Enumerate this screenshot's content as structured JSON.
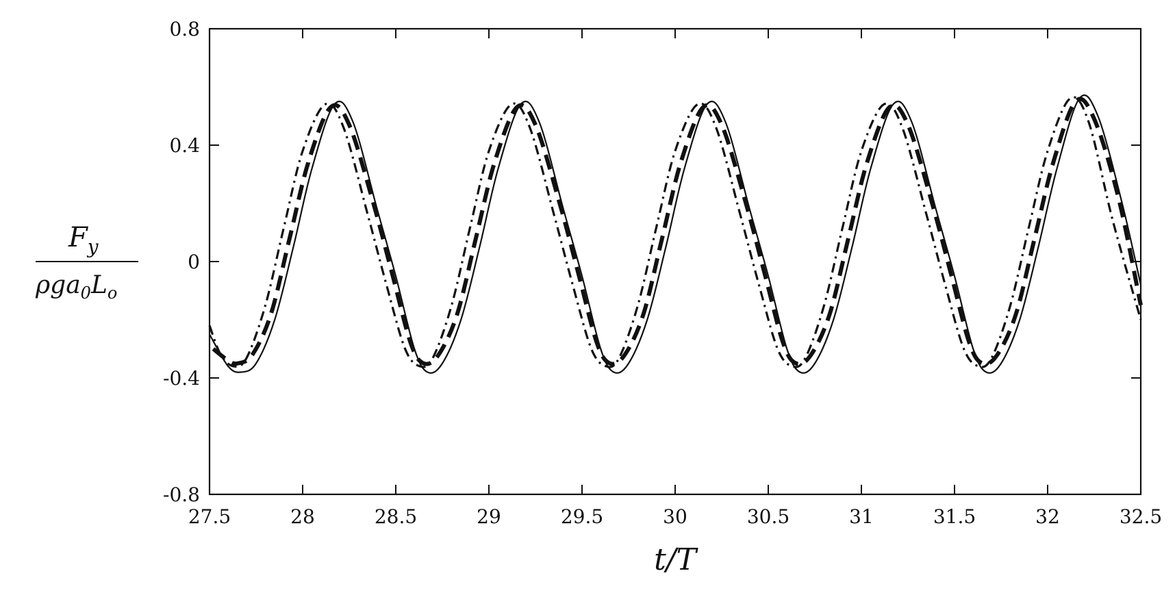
{
  "chart_data": {
    "type": "line",
    "title": "",
    "xlabel": "t/T",
    "ylabel": {
      "numerator": "F_y",
      "denominator": "ρ g a_0 L_o",
      "num_main": "F",
      "num_sub": "y",
      "den_part1": "ρga",
      "den_sub1": "0",
      "den_part2": "L",
      "den_sub2": "o"
    },
    "xlim": [
      27.5,
      32.5
    ],
    "ylim": [
      -0.8,
      0.8
    ],
    "grid": false,
    "legend": "none",
    "x_ticks": [
      27.5,
      28,
      28.5,
      29,
      29.5,
      30,
      30.5,
      31,
      31.5,
      32,
      32.5
    ],
    "x_tick_labels": [
      "27.5",
      "28",
      "28.5",
      "29",
      "29.5",
      "30",
      "30.5",
      "31",
      "31.5",
      "32",
      "32.5"
    ],
    "y_ticks": [
      -0.8,
      -0.4,
      0,
      0.4,
      0.8
    ],
    "y_tick_labels": [
      "-0.8",
      "-0.4",
      "0",
      "0.4",
      "0.8"
    ],
    "series": [
      {
        "style": "solid",
        "color": "#111111",
        "x": [
          27.5,
          27.6,
          27.67,
          27.75,
          27.85,
          27.95,
          28.05,
          28.17,
          28.27,
          28.4,
          28.5,
          28.6,
          28.67,
          28.75,
          28.85,
          28.95,
          29.05,
          29.17,
          29.27,
          29.4,
          29.5,
          29.6,
          29.67,
          29.75,
          29.85,
          29.95,
          30.05,
          30.17,
          30.27,
          30.4,
          30.5,
          30.6,
          30.67,
          30.75,
          30.85,
          30.95,
          31.05,
          31.17,
          31.27,
          31.4,
          31.5,
          31.6,
          31.67,
          31.75,
          31.85,
          31.95,
          32.05,
          32.17,
          32.27,
          32.4,
          32.5
        ],
        "y": [
          -0.25,
          -0.36,
          -0.38,
          -0.35,
          -0.2,
          0.05,
          0.32,
          0.54,
          0.48,
          0.18,
          -0.05,
          -0.3,
          -0.38,
          -0.35,
          -0.2,
          0.05,
          0.32,
          0.54,
          0.48,
          0.18,
          -0.05,
          -0.3,
          -0.38,
          -0.35,
          -0.2,
          0.05,
          0.32,
          0.54,
          0.48,
          0.18,
          -0.05,
          -0.3,
          -0.38,
          -0.35,
          -0.2,
          0.05,
          0.32,
          0.54,
          0.48,
          0.18,
          -0.05,
          -0.3,
          -0.38,
          -0.35,
          -0.2,
          0.05,
          0.32,
          0.56,
          0.5,
          0.2,
          -0.08
        ]
      },
      {
        "style": "dashed-thick",
        "color": "#111111",
        "x": [
          27.52,
          27.6,
          27.65,
          27.73,
          27.83,
          27.93,
          28.03,
          28.15,
          28.25,
          28.38,
          28.48,
          28.58,
          28.65,
          28.73,
          28.83,
          28.93,
          29.03,
          29.15,
          29.25,
          29.38,
          29.48,
          29.58,
          29.65,
          29.73,
          29.83,
          29.93,
          30.03,
          30.15,
          30.25,
          30.38,
          30.48,
          30.58,
          30.65,
          30.73,
          30.83,
          30.93,
          31.03,
          31.15,
          31.25,
          31.38,
          31.48,
          31.58,
          31.65,
          31.73,
          31.83,
          31.93,
          32.03,
          32.15,
          32.25,
          32.38,
          32.5
        ],
        "y": [
          -0.3,
          -0.34,
          -0.35,
          -0.32,
          -0.18,
          0.08,
          0.34,
          0.53,
          0.47,
          0.2,
          -0.04,
          -0.28,
          -0.35,
          -0.32,
          -0.18,
          0.08,
          0.34,
          0.53,
          0.47,
          0.2,
          -0.04,
          -0.28,
          -0.35,
          -0.32,
          -0.18,
          0.08,
          0.34,
          0.53,
          0.47,
          0.2,
          -0.04,
          -0.28,
          -0.35,
          -0.32,
          -0.18,
          0.08,
          0.34,
          0.53,
          0.47,
          0.2,
          -0.04,
          -0.28,
          -0.35,
          -0.32,
          -0.18,
          0.08,
          0.34,
          0.55,
          0.49,
          0.22,
          -0.15
        ]
      },
      {
        "style": "dashdot",
        "color": "#111111",
        "x": [
          27.5,
          27.56,
          27.63,
          27.7,
          27.8,
          27.9,
          28.0,
          28.12,
          28.22,
          28.35,
          28.45,
          28.55,
          28.63,
          28.7,
          28.8,
          28.9,
          29.0,
          29.12,
          29.22,
          29.35,
          29.45,
          29.55,
          29.63,
          29.7,
          29.8,
          29.9,
          30.0,
          30.12,
          30.22,
          30.35,
          30.45,
          30.55,
          30.63,
          30.7,
          30.8,
          30.9,
          31.0,
          31.12,
          31.22,
          31.35,
          31.45,
          31.55,
          31.63,
          31.7,
          31.8,
          31.9,
          32.0,
          32.12,
          32.22,
          32.35,
          32.5
        ],
        "y": [
          -0.22,
          -0.32,
          -0.36,
          -0.33,
          -0.15,
          0.12,
          0.38,
          0.54,
          0.46,
          0.16,
          -0.08,
          -0.3,
          -0.36,
          -0.33,
          -0.15,
          0.12,
          0.38,
          0.54,
          0.46,
          0.16,
          -0.08,
          -0.3,
          -0.36,
          -0.33,
          -0.15,
          0.12,
          0.38,
          0.54,
          0.46,
          0.16,
          -0.08,
          -0.3,
          -0.36,
          -0.33,
          -0.15,
          0.12,
          0.38,
          0.54,
          0.46,
          0.16,
          -0.08,
          -0.3,
          -0.36,
          -0.33,
          -0.15,
          0.12,
          0.38,
          0.56,
          0.48,
          0.14,
          -0.2
        ]
      }
    ]
  }
}
